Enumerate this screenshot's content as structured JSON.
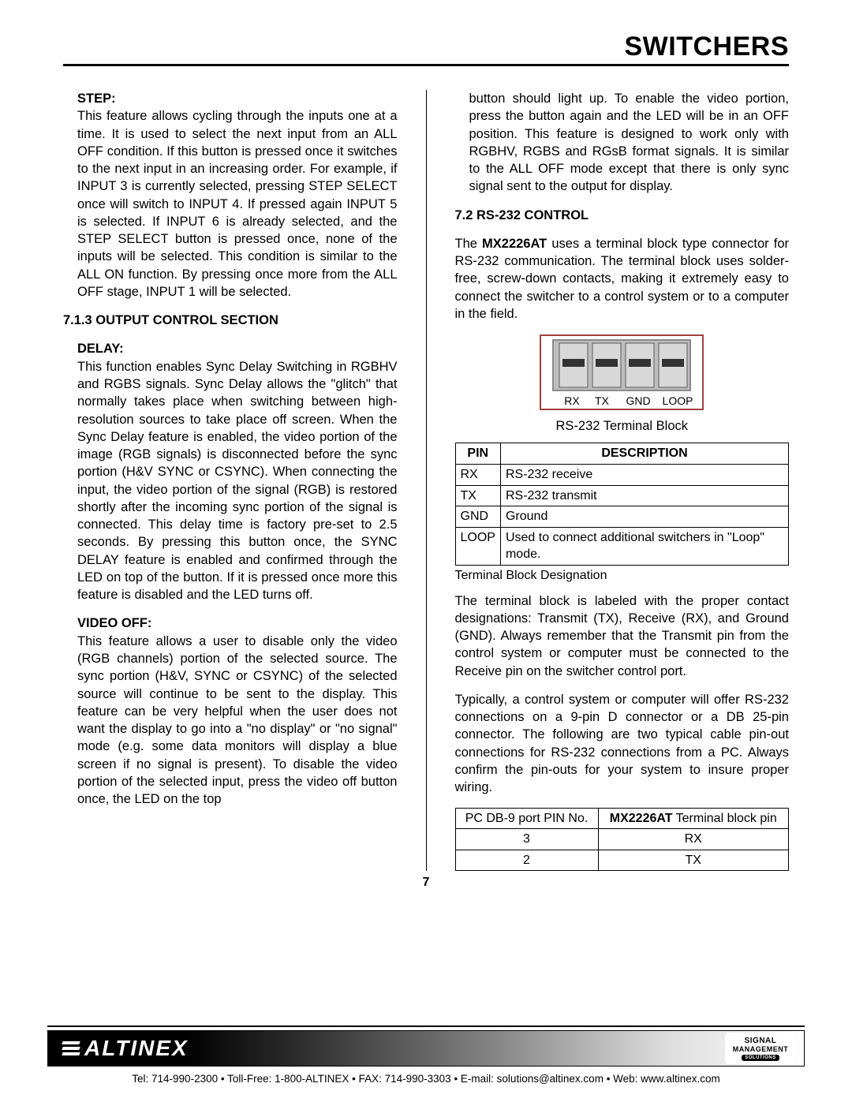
{
  "header": {
    "title": "SWITCHERS"
  },
  "col1": {
    "step_label": "STEP:",
    "step_body": "This feature allows cycling through the inputs one at a time. It is used to select the next input from an ALL OFF condition. If this button is pressed once it switches to the next input in an increasing order. For example, if INPUT 3 is currently selected, pressing STEP SELECT once will switch to INPUT 4. If pressed again INPUT 5 is selected. If INPUT 6 is already selected, and the STEP SELECT button is pressed once, none of the inputs will be selected. This condition is similar to the ALL ON function. By pressing once more from the ALL OFF stage, INPUT 1 will be selected.",
    "output_section": "7.1.3 OUTPUT CONTROL SECTION",
    "delay_label": "DELAY:",
    "delay_body": "This function enables Sync Delay Switching in RGBHV and RGBS signals. Sync Delay allows the \"glitch\" that normally takes place when switching between high-resolution sources to take place off screen. When the Sync Delay feature is enabled, the video portion of the image (RGB signals) is disconnected before the sync portion (H&V SYNC or CSYNC). When connecting the input, the video portion of the signal (RGB) is restored shortly after the incoming sync portion of the signal is connected. This delay time is factory pre-set to 2.5 seconds. By pressing this button once, the SYNC DELAY feature is enabled and confirmed through the LED on top of the button. If it is pressed once more this feature is disabled and the LED turns off.",
    "video_off_label": "VIDEO OFF:",
    "video_off_body": "This feature allows a user to disable only the video (RGB channels) portion of the selected source. The sync portion (H&V, SYNC or CSYNC) of the selected source will continue to be sent to the display. This feature can be very helpful when the user does not want the display to go into a \"no display\" or \"no signal\" mode (e.g. some data monitors will display a blue screen if no signal is present). To disable the video portion of the selected input, press the video off button once, the LED on the top"
  },
  "col2": {
    "cont_body": "button should light up. To enable the video portion, press the button again and the LED will be in an OFF position. This feature is designed to work only with RGBHV, RGBS and RGsB format signals. It is similar to the ALL OFF mode except that there is only sync signal sent to the output for display.",
    "rs232_heading": "7.2 RS-232 CONTROL",
    "rs232_body_prefix": "The ",
    "rs232_model": "MX2226AT",
    "rs232_body_suffix": " uses a terminal block type connector for RS-232 communication. The terminal block uses solder-free, screw-down contacts, making it extremely easy to connect the switcher to a control system or to a computer in the field.",
    "terminal_img": {
      "labels": [
        "RX",
        "TX",
        "GND",
        "LOOP"
      ],
      "frame_color": "#8b8b8b",
      "slot_color": "#333333",
      "body_color": "#bdbdbd",
      "bg": "#ffffff"
    },
    "img_caption": "RS-232 Terminal Block",
    "pin_table": {
      "headers": [
        "PIN",
        "DESCRIPTION"
      ],
      "rows": [
        [
          "RX",
          "RS-232 receive"
        ],
        [
          "TX",
          "RS-232 transmit"
        ],
        [
          "GND",
          "Ground"
        ],
        [
          "LOOP",
          "Used to connect additional switchers in \"Loop\" mode."
        ]
      ]
    },
    "pin_table_note": "Terminal Block Designation",
    "term_para": "The terminal block is labeled with the proper contact designations: Transmit (TX), Receive (RX), and Ground (GND). Always remember that the Transmit pin from the control system or computer must be connected to the Receive pin on the switcher control port.",
    "typical_para": "Typically, a control system or computer will offer RS-232 connections on a 9-pin D connector or a DB 25-pin connector. The following are two typical cable pin-out connections for RS-232 connections from a PC. Always confirm the pin-outs for your system to insure proper wiring.",
    "db_table": {
      "h1": "PC DB-9 port PIN No.",
      "h2_bold": "MX2226AT",
      "h2_rest": " Terminal block pin",
      "rows": [
        [
          "3",
          "RX"
        ],
        [
          "2",
          "TX"
        ]
      ]
    }
  },
  "page_number": "7",
  "footer": {
    "brand": "ALTINEX",
    "sig1": "SIGNAL",
    "sig2": "MANAGEMENT",
    "sig3": "SOLUTIONS",
    "contact": "Tel: 714-990-2300 • Toll-Free: 1-800-ALTINEX • FAX: 714-990-3303 • E-mail: solutions@altinex.com • Web: www.altinex.com"
  }
}
